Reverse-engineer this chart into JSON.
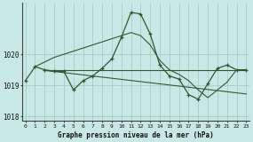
{
  "title": "Graphe pression niveau de la mer (hPa)",
  "bg_color": "#c8e8e8",
  "line_color": "#2d5a2d",
  "grid_color": "#a0c8c0",
  "series": [
    {
      "x": [
        0,
        1,
        2,
        3,
        4,
        5,
        6,
        7,
        8,
        9,
        10,
        11,
        12,
        13,
        14,
        15,
        16,
        17,
        18,
        19,
        20,
        21,
        22,
        23
      ],
      "y": [
        1019.15,
        1019.6,
        1019.5,
        1019.45,
        1019.45,
        1018.85,
        1019.15,
        1019.3,
        1019.55,
        1019.85,
        1020.55,
        1021.35,
        1021.3,
        1020.65,
        1019.65,
        1019.3,
        1019.2,
        1018.7,
        1018.55,
        1019.05,
        1019.55,
        1019.65,
        1019.5,
        1019.5
      ],
      "marker": true
    },
    {
      "x": [
        1,
        2,
        3,
        4,
        5,
        6,
        7,
        8,
        9,
        10,
        11,
        12,
        13,
        14,
        15,
        16,
        17,
        18,
        19,
        20,
        21,
        22,
        23
      ],
      "y": [
        1019.6,
        1019.75,
        1019.9,
        1020.0,
        1020.1,
        1020.2,
        1020.3,
        1020.4,
        1020.5,
        1020.6,
        1020.7,
        1020.6,
        1020.3,
        1019.8,
        1019.5,
        1019.35,
        1019.15,
        1018.85,
        1018.6,
        1018.85,
        1019.1,
        1019.5,
        1019.5
      ],
      "marker": false
    },
    {
      "x": [
        2,
        23
      ],
      "y": [
        1019.5,
        1019.5
      ],
      "marker": false
    },
    {
      "x": [
        2,
        23
      ],
      "y": [
        1019.48,
        1018.72
      ],
      "marker": false
    }
  ],
  "ylim": [
    1017.85,
    1021.65
  ],
  "yticks": [
    1018,
    1019,
    1020
  ],
  "xlim": [
    -0.3,
    23.3
  ],
  "xticks": [
    0,
    1,
    2,
    3,
    4,
    5,
    6,
    7,
    8,
    9,
    10,
    11,
    12,
    13,
    14,
    15,
    16,
    17,
    18,
    19,
    20,
    21,
    22,
    23
  ]
}
